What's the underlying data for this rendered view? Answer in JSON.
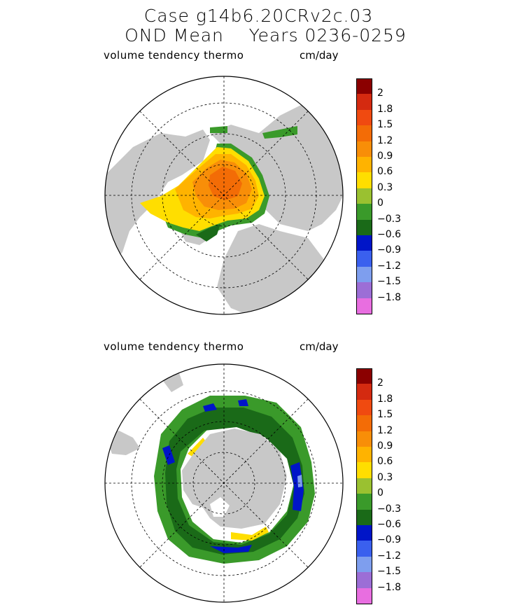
{
  "title": {
    "line1": "Case g14b6.20CRv2c.03",
    "line2": "OND Mean    Years 0236-0259"
  },
  "panels": [
    {
      "id": "north",
      "label": "volume tendency thermo",
      "units": "cm/day",
      "hemisphere": "Arctic"
    },
    {
      "id": "south",
      "label": "volume tendency thermo",
      "units": "cm/day",
      "hemisphere": "Antarctic"
    }
  ],
  "colorbar": {
    "ticks": [
      "2",
      "1.8",
      "1.5",
      "1.2",
      "0.9",
      "0.6",
      "0.3",
      "0",
      "−0.3",
      "−0.6",
      "−0.9",
      "−1.2",
      "−1.5",
      "−1.8"
    ],
    "colors": [
      "#8B0000",
      "#D42A10",
      "#F04A10",
      "#F36C06",
      "#F88E08",
      "#FFB300",
      "#FFDE00",
      "#9AC130",
      "#3A9A2A",
      "#1A6A18",
      "#0015C8",
      "#3A60EE",
      "#7E9EEE",
      "#9C6ED6",
      "#E86EE0"
    ]
  },
  "map_colors": {
    "land": "#C8C8C8",
    "ocean": "#FFFFFF"
  }
}
